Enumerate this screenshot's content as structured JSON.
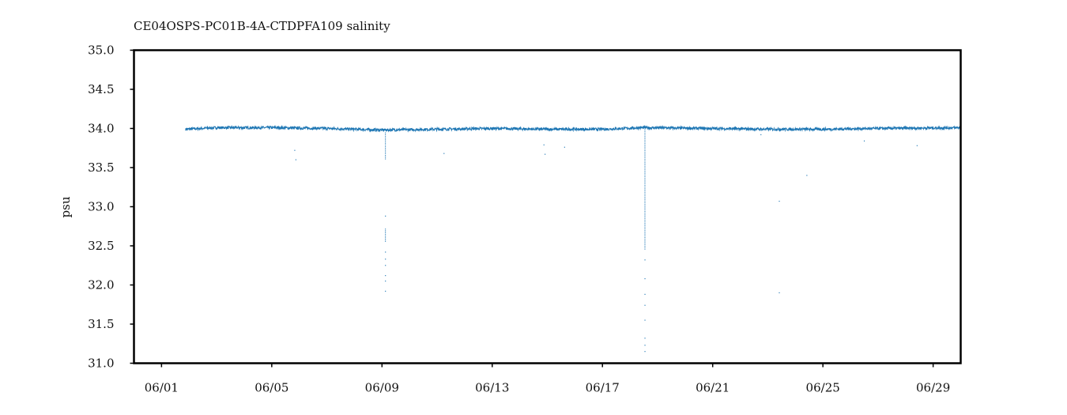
{
  "chart_data": {
    "type": "scatter",
    "title": "CE04OSPS-PC01B-4A-CTDPFA109 salinity",
    "xlabel": "",
    "ylabel": "psu",
    "xlim": [
      "2014-05-31T00:00",
      "2014-06-30T00:00"
    ],
    "ylim": [
      31.0,
      35.0
    ],
    "x_ticks": [
      {
        "date": "2014-06-01",
        "label": "06/01"
      },
      {
        "date": "2014-06-05",
        "label": "06/05"
      },
      {
        "date": "2014-06-09",
        "label": "06/09"
      },
      {
        "date": "2014-06-13",
        "label": "06/13"
      },
      {
        "date": "2014-06-17",
        "label": "06/17"
      },
      {
        "date": "2014-06-21",
        "label": "06/21"
      },
      {
        "date": "2014-06-25",
        "label": "06/25"
      },
      {
        "date": "2014-06-29",
        "label": "06/29"
      }
    ],
    "y_ticks": [
      "31.0",
      "31.5",
      "32.0",
      "32.5",
      "33.0",
      "33.5",
      "34.0",
      "34.5",
      "35.0"
    ],
    "grid": false,
    "series_color": "#1f77b4",
    "baseline": [
      {
        "x": "2014-06-01T21:00",
        "y": 33.99
      },
      {
        "x": "2014-06-03T00:00",
        "y": 34.01
      },
      {
        "x": "2014-06-05T00:00",
        "y": 34.01
      },
      {
        "x": "2014-06-07T00:00",
        "y": 34.0
      },
      {
        "x": "2014-06-09T00:00",
        "y": 33.98
      },
      {
        "x": "2014-06-11T00:00",
        "y": 33.99
      },
      {
        "x": "2014-06-13T00:00",
        "y": 34.0
      },
      {
        "x": "2014-06-15T00:00",
        "y": 33.99
      },
      {
        "x": "2014-06-17T00:00",
        "y": 33.99
      },
      {
        "x": "2014-06-18T12:00",
        "y": 34.01
      },
      {
        "x": "2014-06-21T00:00",
        "y": 34.0
      },
      {
        "x": "2014-06-23T00:00",
        "y": 33.99
      },
      {
        "x": "2014-06-25T00:00",
        "y": 33.99
      },
      {
        "x": "2014-06-27T00:00",
        "y": 34.0
      },
      {
        "x": "2014-06-30T00:00",
        "y": 34.01
      }
    ],
    "spikes": [
      {
        "x": "2014-06-09T03:00",
        "y_from": 33.95,
        "y_to": 33.6
      },
      {
        "x": "2014-06-09T03:00",
        "y_from": 32.72,
        "y_to": 32.55
      },
      {
        "x": "2014-06-18T13:00",
        "y_from": 33.99,
        "y_to": 32.45
      }
    ],
    "outliers": [
      {
        "x": "2014-06-05T20:00",
        "y": 33.72
      },
      {
        "x": "2014-06-05T21:00",
        "y": 33.6
      },
      {
        "x": "2014-06-09T03:00",
        "y": 32.88
      },
      {
        "x": "2014-06-09T03:00",
        "y": 32.42
      },
      {
        "x": "2014-06-09T03:00",
        "y": 32.33
      },
      {
        "x": "2014-06-09T03:00",
        "y": 32.25
      },
      {
        "x": "2014-06-09T03:00",
        "y": 32.12
      },
      {
        "x": "2014-06-09T03:00",
        "y": 32.05
      },
      {
        "x": "2014-06-09T03:00",
        "y": 31.92
      },
      {
        "x": "2014-06-11T06:00",
        "y": 33.68
      },
      {
        "x": "2014-06-14T21:00",
        "y": 33.79
      },
      {
        "x": "2014-06-14T22:00",
        "y": 33.67
      },
      {
        "x": "2014-06-15T15:00",
        "y": 33.76
      },
      {
        "x": "2014-06-18T13:00",
        "y": 32.32
      },
      {
        "x": "2014-06-18T13:00",
        "y": 32.08
      },
      {
        "x": "2014-06-18T13:00",
        "y": 31.88
      },
      {
        "x": "2014-06-18T13:00",
        "y": 31.74
      },
      {
        "x": "2014-06-18T13:00",
        "y": 31.55
      },
      {
        "x": "2014-06-18T13:00",
        "y": 31.32
      },
      {
        "x": "2014-06-18T13:00",
        "y": 31.23
      },
      {
        "x": "2014-06-18T13:00",
        "y": 31.15
      },
      {
        "x": "2014-06-22T18:00",
        "y": 33.92
      },
      {
        "x": "2014-06-23T10:00",
        "y": 33.07
      },
      {
        "x": "2014-06-23T10:00",
        "y": 31.9
      },
      {
        "x": "2014-06-24T10:00",
        "y": 33.4
      },
      {
        "x": "2014-06-26T12:00",
        "y": 33.84
      },
      {
        "x": "2014-06-28T10:00",
        "y": 33.78
      }
    ]
  }
}
